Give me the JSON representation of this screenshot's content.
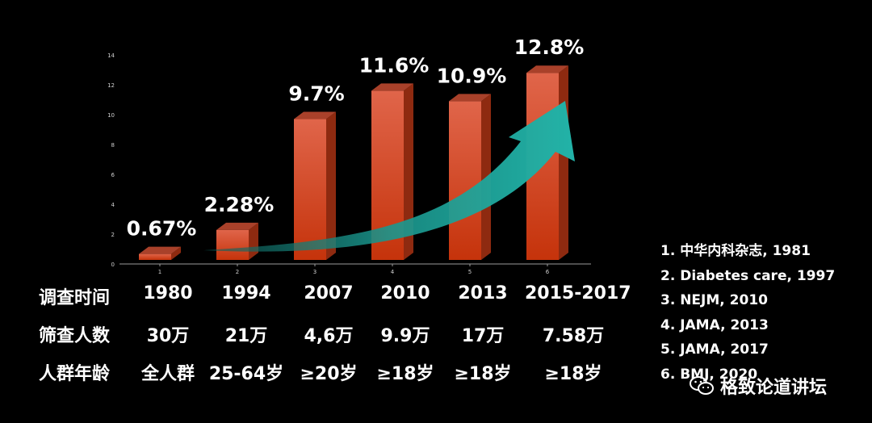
{
  "chart_data": {
    "type": "bar",
    "categories": [
      "1",
      "2",
      "3",
      "4",
      "5",
      "6"
    ],
    "values": [
      0.67,
      2.28,
      9.7,
      11.6,
      10.9,
      12.8
    ],
    "data_labels": [
      "0.67%",
      "2.28%",
      "9.7%",
      "11.6%",
      "10.9%",
      "12.8%"
    ],
    "ylim": [
      0,
      14
    ],
    "yticks": [
      0,
      2,
      4,
      6,
      8,
      10,
      12,
      14
    ],
    "grid": false,
    "colors": {
      "bar_top": "#e0654a",
      "bar_bottom": "#c5330b",
      "arrow": "#1fa39a"
    }
  },
  "table": {
    "rows": [
      {
        "label": "调查时间",
        "cells": [
          "1980",
          "1994",
          "2007",
          "2010",
          "2013",
          "2015-2017"
        ]
      },
      {
        "label": "筛查人数",
        "cells": [
          "30万",
          "21万",
          "4,6万",
          "9.9万",
          "17万",
          "7.58万"
        ]
      },
      {
        "label": "人群年龄",
        "cells": [
          "全人群",
          "25-64岁",
          "≥20岁",
          "≥18岁",
          "≥18岁",
          "≥18岁"
        ]
      }
    ]
  },
  "references": [
    "1. 中华内科杂志, 1981",
    "2. Diabetes care, 1997",
    "3. NEJM, 2010",
    "4. JAMA, 2013",
    "5. JAMA, 2017",
    "6. BMJ, 2020"
  ],
  "watermark": {
    "text": "格致论道讲坛",
    "icon": "wechat-icon"
  }
}
